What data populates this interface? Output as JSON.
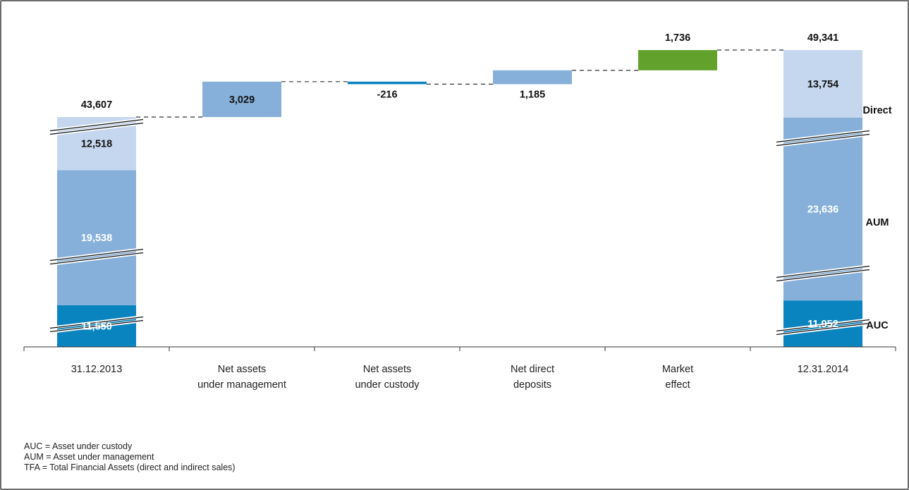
{
  "chart_data": {
    "type": "bar",
    "subtype": "waterfall",
    "categories": [
      {
        "line1": "31.12.2013",
        "line2": ""
      },
      {
        "line1": "Net assets",
        "line2": "under management"
      },
      {
        "line1": "Net assets",
        "line2": "under custody"
      },
      {
        "line1": "Net direct",
        "line2": "deposits"
      },
      {
        "line1": "Market",
        "line2": "effect"
      },
      {
        "line1": "12.31.2014",
        "line2": ""
      }
    ],
    "start": {
      "total": 43607,
      "total_label": "43,607",
      "segments": [
        {
          "name": "AUC",
          "value": 11550,
          "label": "11,550"
        },
        {
          "name": "AUM",
          "value": 19538,
          "label": "19,538"
        },
        {
          "name": "Direct",
          "value": 12518,
          "label": "12,518"
        }
      ]
    },
    "changes": [
      {
        "value": 3029,
        "label": "3,029"
      },
      {
        "value": -216,
        "label": "-216"
      },
      {
        "value": 1185,
        "label": "1,185"
      },
      {
        "value": 1736,
        "label": "1,736"
      }
    ],
    "end": {
      "total": 49341,
      "total_label": "49,341",
      "segments": [
        {
          "name": "AUC",
          "value": 11952,
          "label": "11,952"
        },
        {
          "name": "AUM",
          "value": 23636,
          "label": "23,636"
        },
        {
          "name": "Direct",
          "value": 13754,
          "label": "13,754"
        }
      ]
    },
    "legend_right": [
      "AUC",
      "AUM",
      "Direct"
    ],
    "colors": {
      "auc": "#0a84bf",
      "aum": "#86b0d9",
      "direct": "#c5d7ee",
      "change_aum": "#86b0d9",
      "change_auc": "#0a84bf",
      "change_direct": "#86b0d9",
      "market": "#62a22c"
    },
    "axis_break": true
  },
  "footnotes": [
    "AUC = Asset under custody",
    "AUM = Asset under management",
    "TFA = Total Financial Assets (direct and indirect sales)"
  ]
}
